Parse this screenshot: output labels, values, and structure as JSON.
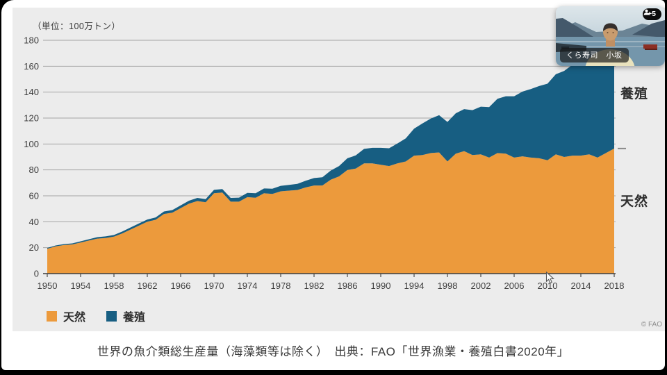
{
  "meeting": {
    "participant_name": "くら寿司　小坂",
    "participants_badge": "+5"
  },
  "caption": "世界の魚介類総生産量（海藻類等は除く）　出典：FAO「世界漁業・養殖白書2020年」",
  "chart_data": {
    "type": "area",
    "stacked": true,
    "unit_label": "（単位：100万トン）",
    "ylabel": "100万トン",
    "ylim": [
      0,
      180
    ],
    "xlim": [
      1950,
      2018
    ],
    "yticks": [
      0,
      20,
      40,
      60,
      80,
      100,
      120,
      140,
      160,
      180
    ],
    "xticks": [
      1950,
      1954,
      1958,
      1962,
      1966,
      1970,
      1974,
      1978,
      1982,
      1986,
      1990,
      1994,
      1998,
      2002,
      2006,
      2010,
      2014,
      2018
    ],
    "grid": true,
    "legend_position": "bottom-left",
    "right_labels": [
      "養殖",
      "天然"
    ],
    "credit": "© FAO",
    "x": [
      1950,
      1951,
      1952,
      1953,
      1954,
      1955,
      1956,
      1957,
      1958,
      1959,
      1960,
      1961,
      1962,
      1963,
      1964,
      1965,
      1966,
      1967,
      1968,
      1969,
      1970,
      1971,
      1972,
      1973,
      1974,
      1975,
      1976,
      1977,
      1978,
      1979,
      1980,
      1981,
      1982,
      1983,
      1984,
      1985,
      1986,
      1987,
      1988,
      1989,
      1990,
      1991,
      1992,
      1993,
      1994,
      1995,
      1996,
      1997,
      1998,
      1999,
      2000,
      2001,
      2002,
      2003,
      2004,
      2005,
      2006,
      2007,
      2008,
      2009,
      2010,
      2011,
      2012,
      2013,
      2014,
      2015,
      2016,
      2017,
      2018
    ],
    "series": [
      {
        "name": "天然",
        "color": "#EC9A3C",
        "values": [
          19.2,
          21,
          22,
          22.5,
          24,
          25.5,
          27,
          27.5,
          28.5,
          31,
          34,
          37,
          40,
          41.5,
          46,
          47,
          50.5,
          54,
          56,
          55,
          62,
          62.5,
          55.5,
          55.5,
          59,
          58.5,
          62,
          61.5,
          63.5,
          64,
          64.5,
          66.5,
          68,
          68,
          72.5,
          75,
          80,
          81,
          85,
          85,
          84,
          83,
          85,
          86.5,
          91,
          91.5,
          93,
          93.5,
          86.5,
          92.5,
          94.5,
          91.5,
          92,
          89.5,
          93,
          92.5,
          89.5,
          90.5,
          89.5,
          89,
          87.5,
          92,
          90,
          91,
          91,
          92,
          89.5,
          93,
          96.5
        ]
      },
      {
        "name": "養殖",
        "color": "#175E82",
        "values": [
          0.6,
          0.7,
          0.75,
          0.8,
          0.9,
          1,
          1.1,
          1.2,
          1.3,
          1.45,
          1.6,
          1.7,
          1.75,
          1.85,
          1.95,
          2,
          2.1,
          2.25,
          2.4,
          2.5,
          2.6,
          2.75,
          2.9,
          3.1,
          3.3,
          3.5,
          3.7,
          4,
          4.2,
          4.45,
          4.7,
          5.2,
          5.7,
          6.3,
          7,
          8,
          9,
          10.2,
          11.2,
          12,
          13,
          13.7,
          15.4,
          17.8,
          20.8,
          24.4,
          26.6,
          28.7,
          30.5,
          31.2,
          32.4,
          34.6,
          36.8,
          38.9,
          41.9,
          44.3,
          47.3,
          49.9,
          52.9,
          55.7,
          59,
          61.8,
          66.4,
          70.2,
          73.7,
          76.6,
          80,
          81.5,
          82.1
        ]
      }
    ]
  }
}
